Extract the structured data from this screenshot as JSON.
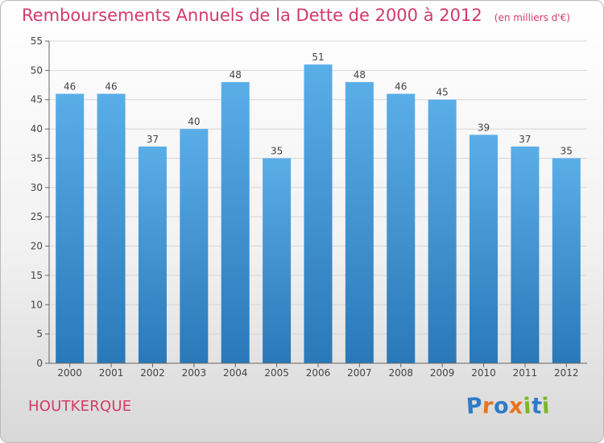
{
  "chart_data": {
    "type": "bar",
    "title": "Remboursements Annuels de la Dette de 2000 à 2012",
    "subtitle": "(en milliers d'€)",
    "categories": [
      "2000",
      "2001",
      "2002",
      "2003",
      "2004",
      "2005",
      "2006",
      "2007",
      "2008",
      "2009",
      "2010",
      "2011",
      "2012"
    ],
    "values": [
      46,
      46,
      37,
      40,
      48,
      35,
      51,
      48,
      46,
      45,
      39,
      37,
      35
    ],
    "ylim": [
      0,
      55
    ],
    "yticks": [
      0,
      5,
      10,
      15,
      20,
      25,
      30,
      35,
      40,
      45,
      50,
      55
    ],
    "grid": true,
    "legend": "none",
    "colors": {
      "bar_top": "#5aaee8",
      "bar_bottom": "#2a78b8",
      "title": "#d33a6a"
    }
  },
  "footer": {
    "commune": "HOUTKERQUE",
    "logo": {
      "text": "Proxiti",
      "letter_colors": [
        "#2e7bc6",
        "#e8741e",
        "#2e7bc6",
        "#e8741e",
        "#7bb62a",
        "#2e7bc6",
        "#7bb62a"
      ]
    }
  }
}
